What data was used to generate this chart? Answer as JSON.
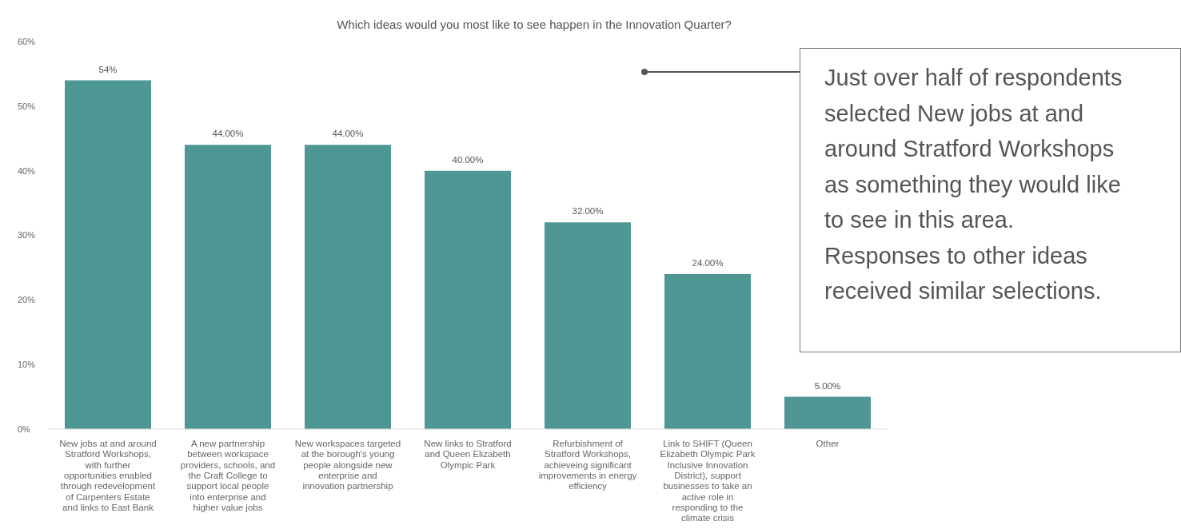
{
  "chart_data": {
    "type": "bar",
    "title": "Which ideas would you most like to see happen in the Innovation Quarter?",
    "categories": [
      "New jobs at and around Stratford Workshops, with further opportunities enabled through redevelopment of Carpenters Estate and links to East Bank",
      "A new partnership between workspace providers, schools, and the Craft College to support local people into enterprise and higher value jobs",
      "New workspaces targeted at the borough's young people alongside new enterprise and innovation partnership",
      "New links to Stratford and Queen Elizabeth Olympic Park",
      "Refurbishment of Stratford Workshops, achieveing significant improvements in energy efficiency",
      "Link to SHIFT (Queen Elizabeth Olympic Park Inclusive Innovation District), support businesses to take an active role in responding to the climate crisis",
      "Other"
    ],
    "values": [
      54,
      44,
      44,
      40,
      32,
      24,
      5
    ],
    "value_labels": [
      "54%",
      "44.00%",
      "44.00%",
      "40.00%",
      "32.00%",
      "24.00%",
      "5.00%"
    ],
    "color": "#4f9795",
    "ylim": [
      0,
      60
    ],
    "yticks": [
      {
        "value": 0,
        "label": "0%"
      },
      {
        "value": 10,
        "label": "10%"
      },
      {
        "value": 20,
        "label": "20%"
      },
      {
        "value": 30,
        "label": "30%"
      },
      {
        "value": 40,
        "label": "40%"
      },
      {
        "value": 50,
        "label": "50%"
      },
      {
        "value": 60,
        "label": "60%"
      }
    ],
    "annotations": [
      "Just over half of respondents selected New jobs at and around Stratford Workshops as something they would like to see in this area. Responses to other ideas received similar selections."
    ]
  }
}
